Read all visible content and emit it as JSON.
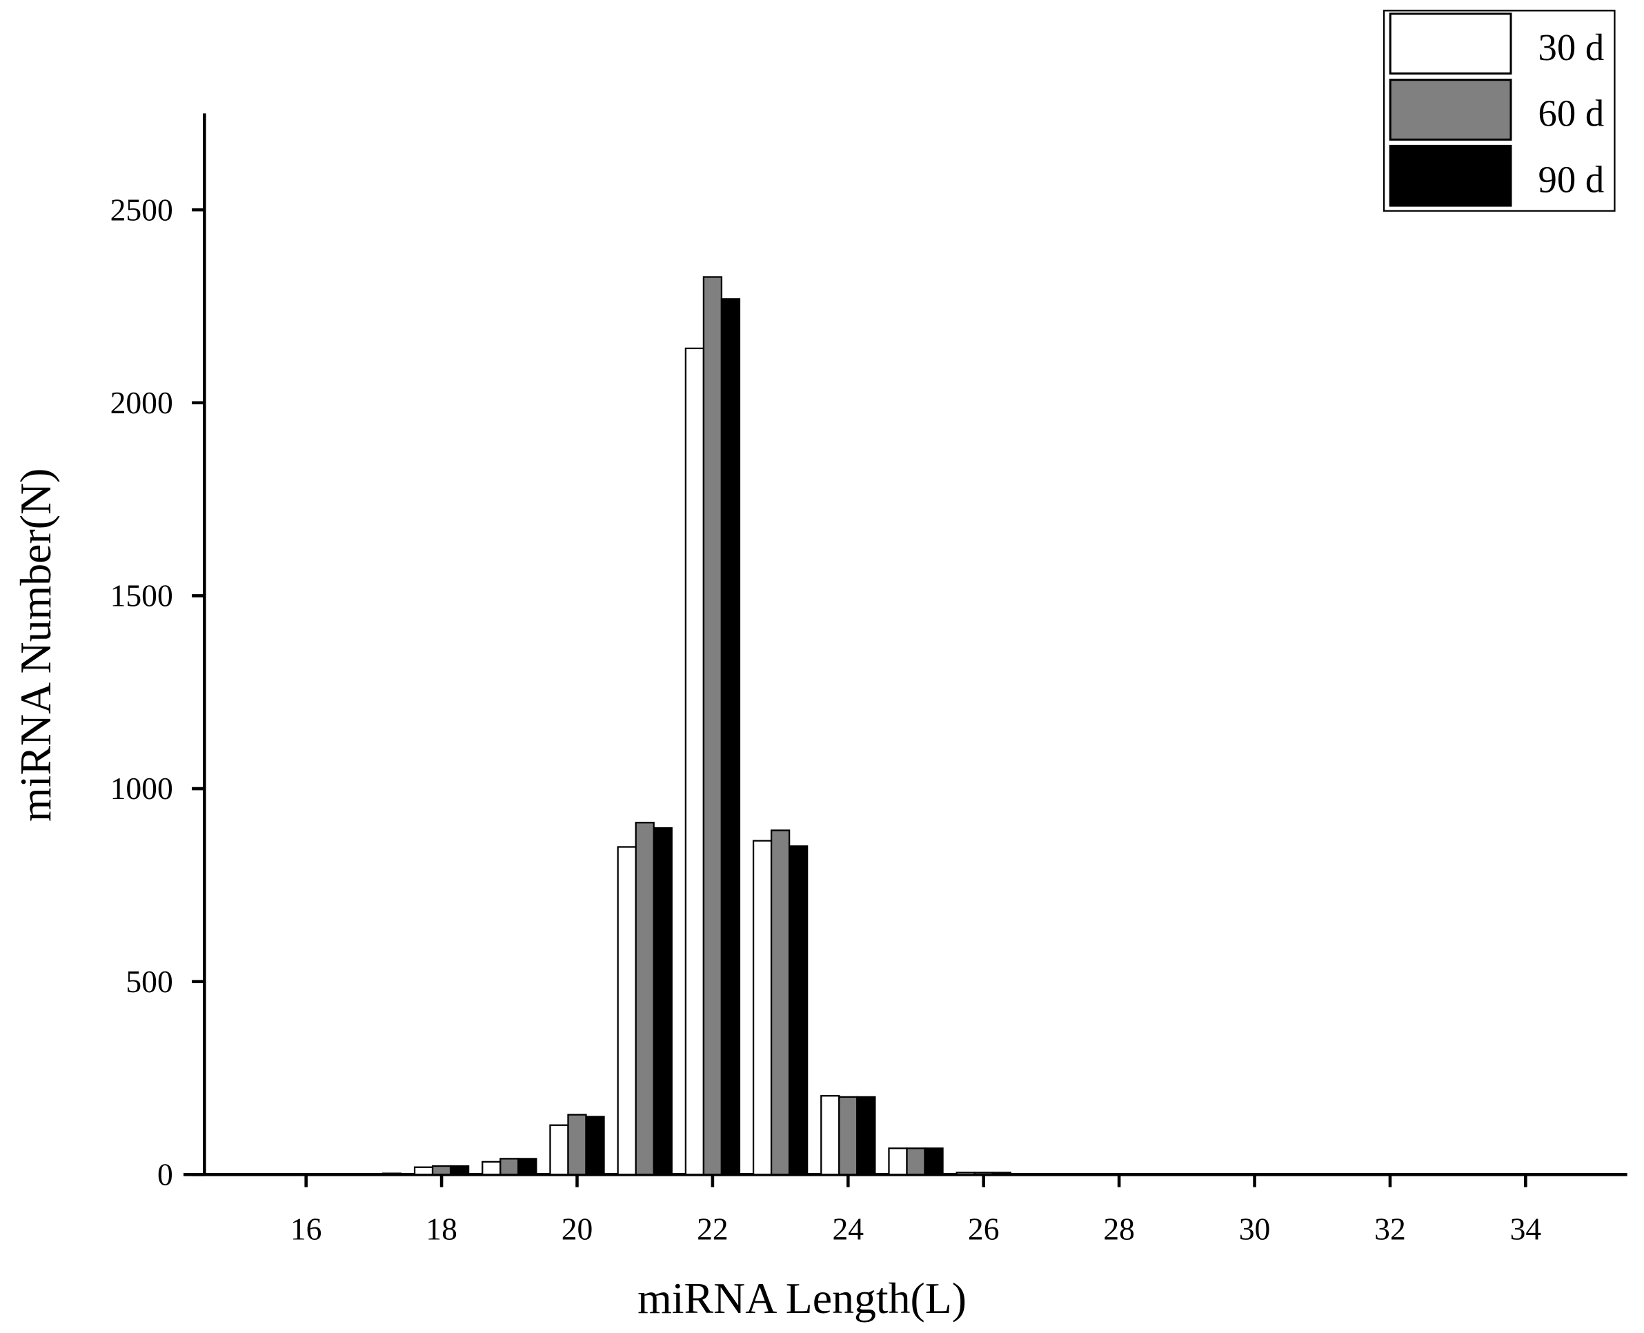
{
  "chart_data": {
    "type": "bar",
    "x_label": "miRNA Length(L)",
    "y_label": "miRNA Number(N)",
    "x": [
      17,
      18,
      19,
      20,
      21,
      22,
      23,
      24,
      25,
      26,
      27
    ],
    "series": [
      {
        "name": "30 d",
        "color": "#ffffff",
        "values": [
          2,
          19,
          33,
          128,
          849,
          2141,
          865,
          204,
          68,
          5,
          1
        ]
      },
      {
        "name": "60 d",
        "color": "#808080",
        "values": [
          2,
          22,
          41,
          155,
          912,
          2326,
          892,
          201,
          68,
          5,
          1
        ]
      },
      {
        "name": "90 d",
        "color": "#000000",
        "values": [
          3,
          22,
          41,
          150,
          898,
          2269,
          851,
          201,
          68,
          5,
          1
        ]
      }
    ],
    "xlim": [
      14.5,
      35.5
    ],
    "xticks": [
      16,
      18,
      20,
      22,
      24,
      26,
      28,
      30,
      32,
      34
    ],
    "ylim": [
      0,
      2750
    ],
    "yticks": [
      0,
      500,
      1000,
      1500,
      2000,
      2500
    ],
    "legend": "top-right",
    "bar_edge_color": "#000000"
  }
}
